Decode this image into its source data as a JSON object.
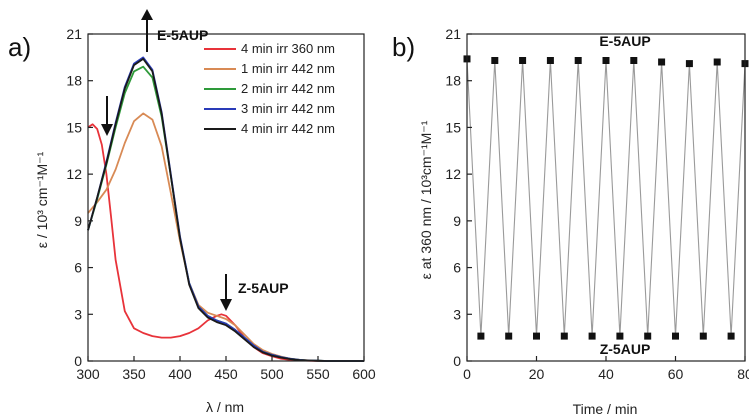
{
  "chart_data": [
    {
      "type": "line",
      "panel_label": "a)",
      "xlabel": "λ / nm",
      "ylabel": "ε / 10³ cm⁻¹M⁻¹",
      "xlim": [
        300,
        600
      ],
      "ylim": [
        0,
        21
      ],
      "xticks": [
        "300",
        "350",
        "400",
        "450",
        "500",
        "550",
        "600"
      ],
      "yticks": [
        "0",
        "3",
        "6",
        "9",
        "12",
        "15",
        "18",
        "21"
      ],
      "legend_position": "top-right",
      "annotations": {
        "e_label": "E-5AUP",
        "z_label": "Z-5AUP"
      },
      "series": [
        {
          "name": "4 min irr 360 nm",
          "color": "#e8333a",
          "x": [
            300,
            305,
            310,
            315,
            320,
            325,
            330,
            340,
            350,
            360,
            370,
            380,
            390,
            400,
            410,
            420,
            430,
            440,
            445,
            450,
            460,
            470,
            480,
            490,
            500,
            510,
            520,
            530,
            540,
            550,
            560,
            570,
            580,
            590,
            600
          ],
          "y": [
            15.0,
            15.2,
            14.9,
            13.9,
            12.0,
            9.3,
            6.5,
            3.2,
            2.1,
            1.8,
            1.6,
            1.5,
            1.5,
            1.6,
            1.8,
            2.1,
            2.6,
            2.9,
            3.0,
            2.9,
            2.3,
            1.5,
            0.9,
            0.5,
            0.3,
            0.15,
            0.08,
            0.04,
            0.02,
            0.0,
            0.0,
            0.0,
            0.0,
            0.0,
            0.0
          ]
        },
        {
          "name": "1 min irr 442 nm",
          "color": "#d88a55",
          "x": [
            300,
            310,
            320,
            330,
            340,
            350,
            360,
            370,
            380,
            390,
            400,
            410,
            420,
            430,
            440,
            450,
            460,
            470,
            480,
            490,
            500,
            510,
            520,
            530,
            540,
            550,
            560,
            570,
            580,
            590,
            600
          ],
          "y": [
            9.5,
            10.2,
            11.0,
            12.3,
            14.0,
            15.4,
            15.9,
            15.5,
            13.8,
            10.8,
            7.7,
            5.0,
            3.6,
            3.1,
            2.9,
            2.7,
            2.3,
            1.7,
            1.1,
            0.7,
            0.45,
            0.28,
            0.15,
            0.08,
            0.04,
            0.02,
            0.0,
            0.0,
            0.0,
            0.0,
            0.0
          ]
        },
        {
          "name": "2 min irr 442 nm",
          "color": "#2e9a3a",
          "x": [
            300,
            310,
            320,
            330,
            340,
            350,
            360,
            370,
            380,
            390,
            400,
            410,
            420,
            430,
            440,
            450,
            460,
            470,
            480,
            490,
            500,
            510,
            520,
            530,
            540,
            550,
            560,
            570,
            580,
            590,
            600
          ],
          "y": [
            8.4,
            10.4,
            12.6,
            15.0,
            17.2,
            18.6,
            18.9,
            18.2,
            15.7,
            11.9,
            7.9,
            5.0,
            3.5,
            2.9,
            2.6,
            2.4,
            2.0,
            1.5,
            1.0,
            0.6,
            0.4,
            0.25,
            0.14,
            0.07,
            0.03,
            0.02,
            0.0,
            0.0,
            0.0,
            0.0,
            0.0
          ]
        },
        {
          "name": "3 min irr 442 nm",
          "color": "#2a3bb8",
          "x": [
            300,
            310,
            320,
            330,
            340,
            350,
            360,
            370,
            380,
            390,
            400,
            410,
            420,
            430,
            440,
            450,
            460,
            470,
            480,
            490,
            500,
            510,
            520,
            530,
            540,
            550,
            560,
            570,
            580,
            590,
            600
          ],
          "y": [
            8.4,
            10.5,
            12.8,
            15.3,
            17.6,
            19.1,
            19.5,
            18.7,
            16.0,
            12.0,
            8.0,
            5.0,
            3.5,
            2.9,
            2.6,
            2.4,
            2.0,
            1.5,
            1.0,
            0.6,
            0.4,
            0.25,
            0.14,
            0.07,
            0.03,
            0.02,
            0.0,
            0.0,
            0.0,
            0.0,
            0.0
          ]
        },
        {
          "name": "4 min irr 442 nm",
          "color": "#1a1a1a",
          "x": [
            300,
            310,
            320,
            330,
            340,
            350,
            360,
            370,
            380,
            390,
            400,
            410,
            420,
            430,
            440,
            450,
            460,
            470,
            480,
            490,
            500,
            510,
            520,
            530,
            540,
            550,
            560,
            570,
            580,
            590,
            600
          ],
          "y": [
            8.4,
            10.5,
            12.7,
            15.2,
            17.5,
            19.0,
            19.4,
            18.6,
            15.9,
            11.9,
            7.9,
            4.9,
            3.4,
            2.8,
            2.5,
            2.3,
            1.9,
            1.4,
            0.9,
            0.55,
            0.35,
            0.22,
            0.12,
            0.06,
            0.03,
            0.01,
            0.0,
            0.0,
            0.0,
            0.0,
            0.0
          ]
        }
      ]
    },
    {
      "type": "line",
      "panel_label": "b)",
      "xlabel": "Time / min",
      "ylabel": "ε at 360 nm / 10³cm⁻¹M⁻¹",
      "xlim": [
        0,
        80
      ],
      "ylim": [
        0,
        21
      ],
      "xticks": [
        "0",
        "20",
        "40",
        "60",
        "80"
      ],
      "yticks": [
        "0",
        "3",
        "6",
        "9",
        "12",
        "15",
        "18",
        "21"
      ],
      "annotations": {
        "e_label": "E-5AUP",
        "z_label": "Z-5AUP"
      },
      "series": [
        {
          "color": "#9a9a9a",
          "x": [
            0,
            4,
            8,
            12,
            16,
            20,
            24,
            28,
            32,
            36,
            40,
            44,
            48,
            52,
            56,
            60,
            64,
            68,
            72,
            76,
            80
          ],
          "y": [
            19.4,
            1.6,
            19.3,
            1.6,
            19.3,
            1.6,
            19.3,
            1.6,
            19.3,
            1.6,
            19.3,
            1.6,
            19.3,
            1.6,
            19.2,
            1.6,
            19.1,
            1.6,
            19.2,
            1.6,
            19.1
          ]
        }
      ]
    }
  ]
}
